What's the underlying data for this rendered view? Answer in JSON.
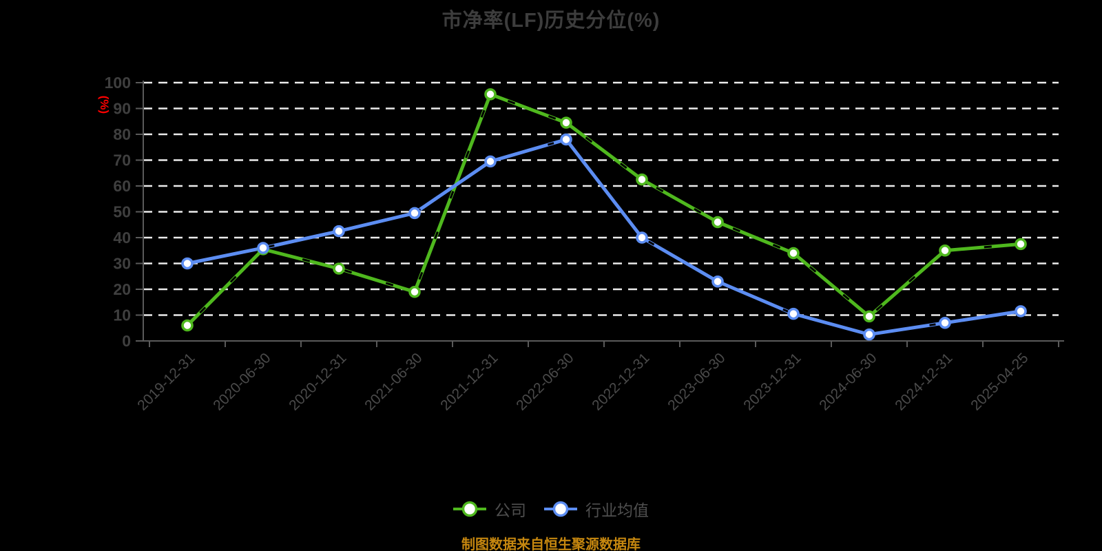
{
  "source_note": "制图数据来自恒生聚源数据库",
  "colors": {
    "background": "#000000",
    "gridline": "#ececec",
    "axis": "#5a5a5a",
    "y_label": "#3f3f3f",
    "x_label": "#4a4a4a",
    "title": "#3d3d3d",
    "unit_label": "#ff0000",
    "source": "#c6870f",
    "marker_fill": "#ffffff",
    "line_overlay": "#000000"
  },
  "chart_data": {
    "type": "line",
    "title": "市净率(LF)历史分位(%)",
    "xlabel": "",
    "ylabel": "(%)",
    "ylim": [
      0,
      100
    ],
    "ytick_interval": 10,
    "yticks": [
      0,
      10,
      20,
      30,
      40,
      50,
      60,
      70,
      80,
      90,
      100
    ],
    "grid": "horizontal-white-dashed",
    "legend_position": "bottom-center",
    "x_label_rotation": -45,
    "categories": [
      "2019-12-31",
      "2020-06-30",
      "2020-12-31",
      "2021-06-30",
      "2021-12-31",
      "2022-06-30",
      "2022-12-31",
      "2023-06-30",
      "2023-12-31",
      "2024-06-30",
      "2024-12-31",
      "2025-04-25"
    ],
    "series": [
      {
        "name": "公司",
        "slug": "company",
        "color": "#4fb81e",
        "marker": "circle-white-fill",
        "values": [
          6,
          35.5,
          28,
          19,
          95.5,
          84.5,
          62.5,
          46,
          34,
          9.5,
          35,
          37.5
        ]
      },
      {
        "name": "行业均值",
        "slug": "industry-average",
        "color": "#5c8df2",
        "marker": "circle-white-fill",
        "values": [
          30,
          36,
          42.5,
          49.5,
          69.5,
          78,
          40,
          23,
          10.5,
          2.5,
          7,
          11.5
        ]
      }
    ]
  }
}
